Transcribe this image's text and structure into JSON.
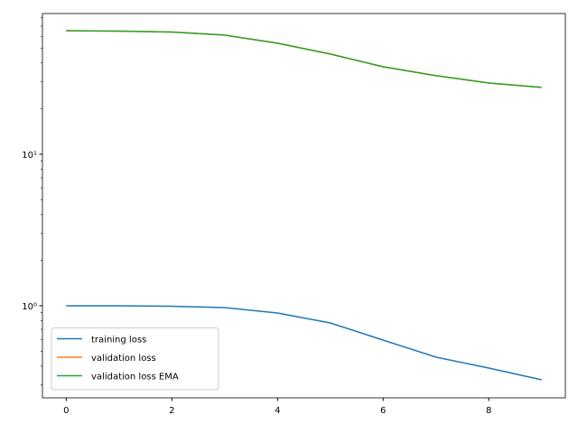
{
  "chart_data": {
    "type": "line",
    "x": [
      0,
      1,
      2,
      3,
      4,
      5,
      6,
      7,
      8,
      9
    ],
    "series": [
      {
        "name": "training loss",
        "color": "#1f77b4",
        "values": [
          1.0,
          1.0,
          0.993,
          0.973,
          0.896,
          0.77,
          0.594,
          0.458,
          0.388,
          0.325
        ]
      },
      {
        "name": "validation loss",
        "color": "#ff7f0e",
        "values": [
          65.4,
          64.9,
          64.0,
          61.1,
          54.0,
          45.8,
          37.8,
          33.0,
          29.5,
          27.6
        ]
      },
      {
        "name": "validation loss EMA",
        "color": "#2ca02c",
        "values": [
          65.4,
          64.9,
          64.0,
          61.1,
          54.0,
          45.8,
          37.8,
          33.0,
          29.5,
          27.6
        ]
      }
    ],
    "xlim": [
      -0.45,
      9.45
    ],
    "xticks": [
      0,
      2,
      4,
      6,
      8
    ],
    "ylim": [
      0.247,
      84.8
    ],
    "ylog": true,
    "yticks": [
      {
        "value": 1,
        "label": "10⁰"
      },
      {
        "value": 10,
        "label": "10¹"
      }
    ],
    "yminorticks": [
      0.3,
      0.4,
      0.5,
      0.6,
      0.7,
      0.8,
      0.9,
      2,
      3,
      4,
      5,
      6,
      7,
      8,
      9,
      20,
      30,
      40,
      50,
      60,
      70,
      80
    ],
    "legend": "lower left"
  }
}
